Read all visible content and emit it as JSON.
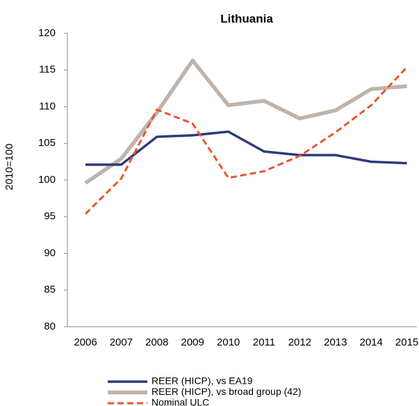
{
  "chart_data": {
    "type": "line",
    "title": "Lithuania",
    "y_label": "2010=100",
    "categories": [
      "2006",
      "2007",
      "2008",
      "2009",
      "2010",
      "2011",
      "2012",
      "2013",
      "2014",
      "2015"
    ],
    "series": [
      {
        "name": "REER (HICP), vs EA19",
        "color": "#2e3a7a",
        "values": [
          102.1,
          102.1,
          105.9,
          106.1,
          106.6,
          103.9,
          103.4,
          103.4,
          102.5,
          102.3
        ]
      },
      {
        "name": "REER (HICP), vs broad group (42)",
        "color": "#bfb3aa",
        "values": [
          99.6,
          102.9,
          109.2,
          116.3,
          110.2,
          110.8,
          108.4,
          109.5,
          112.4,
          112.8
        ]
      },
      {
        "name": "Nominal ULC",
        "color": "#e8562a",
        "dashed": true,
        "values": [
          95.4,
          100.2,
          109.6,
          107.7,
          100.3,
          101.2,
          103.3,
          106.5,
          110.2,
          115.4
        ]
      }
    ],
    "ylim": [
      80,
      120
    ],
    "yticks": [
      80,
      85,
      90,
      95,
      100,
      105,
      110,
      115,
      120
    ],
    "grid": false
  }
}
